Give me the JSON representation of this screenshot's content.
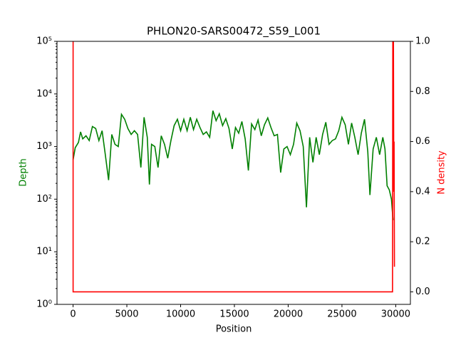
{
  "chart_data": {
    "type": "line",
    "title": "PHLON20-SARS00472_S59_L001",
    "xlabel": "Position",
    "ylabel": "Depth",
    "y2label": "N density",
    "ylabel_color": "#008000",
    "y2label_color": "#ff0000",
    "xlim": [
      -1494,
      31364
    ],
    "xticks": [
      0,
      5000,
      10000,
      15000,
      20000,
      25000,
      30000
    ],
    "ylim": [
      1,
      100000
    ],
    "yscale": "log",
    "yticks": [
      {
        "value": 1,
        "label": "10⁰"
      },
      {
        "value": 10,
        "label": "10¹"
      },
      {
        "value": 100,
        "label": "10²"
      },
      {
        "value": 1000,
        "label": "10³"
      },
      {
        "value": 10000,
        "label": "10⁴"
      },
      {
        "value": 100000,
        "label": "10⁵"
      }
    ],
    "y2lim": [
      -0.05,
      1.0
    ],
    "y2ticks": [
      {
        "value": 0,
        "label": "0.0"
      },
      0.2,
      0.4,
      0.6,
      0.8,
      {
        "value": 1,
        "label": "1.0"
      }
    ],
    "series": [
      {
        "color": "#008000",
        "x": [
          0,
          200,
          500,
          700,
          900,
          1200,
          1500,
          1800,
          2100,
          2400,
          2700,
          3000,
          3300,
          3600,
          3900,
          4200,
          4500,
          4800,
          5100,
          5400,
          5700,
          6000,
          6300,
          6600,
          6900,
          7100,
          7300,
          7600,
          7900,
          8200,
          8500,
          8800,
          9100,
          9400,
          9700,
          10000,
          10300,
          10600,
          10900,
          11200,
          11500,
          11800,
          12100,
          12400,
          12700,
          13000,
          13300,
          13600,
          13900,
          14200,
          14500,
          14800,
          15100,
          15400,
          15700,
          16000,
          16300,
          16600,
          16900,
          17200,
          17500,
          17800,
          18100,
          18400,
          18700,
          19000,
          19300,
          19600,
          19900,
          20200,
          20500,
          20800,
          21100,
          21400,
          21700,
          22000,
          22300,
          22600,
          22900,
          23200,
          23500,
          23800,
          24100,
          24400,
          24700,
          25000,
          25300,
          25600,
          25900,
          26200,
          26500,
          26800,
          27100,
          27400,
          27600,
          27900,
          28200,
          28500,
          28800,
          29000,
          29200,
          29400,
          29600,
          29750
        ],
        "values": [
          560,
          950,
          1200,
          1900,
          1400,
          1600,
          1300,
          2400,
          2200,
          1300,
          2000,
          700,
          230,
          1700,
          1100,
          1000,
          4100,
          3300,
          2200,
          1700,
          2000,
          1700,
          400,
          3600,
          1500,
          190,
          1100,
          1000,
          400,
          1600,
          1100,
          600,
          1300,
          2500,
          3300,
          2000,
          3300,
          2000,
          3600,
          2100,
          3300,
          2300,
          1700,
          1900,
          1500,
          4800,
          3100,
          4200,
          2500,
          3400,
          2200,
          900,
          2300,
          1800,
          3000,
          1400,
          350,
          2700,
          2100,
          3200,
          1600,
          2600,
          3500,
          2300,
          1600,
          1700,
          320,
          900,
          1000,
          700,
          1100,
          2800,
          2000,
          1000,
          70,
          1500,
          500,
          1500,
          700,
          1700,
          2900,
          1100,
          1300,
          1400,
          2000,
          3600,
          2600,
          1100,
          2800,
          1500,
          700,
          1800,
          3300,
          800,
          120,
          900,
          1500,
          700,
          1500,
          900,
          180,
          150,
          100,
          40
        ]
      },
      {
        "color": "#ff0000",
        "axis": "y2",
        "x": [
          0,
          1,
          29700,
          29730,
          29760,
          29790,
          29820,
          29850,
          29880
        ],
        "values": [
          1.0,
          0.0,
          0.0,
          1.0,
          0.75,
          1.0,
          0.4,
          0.6,
          0.1
        ]
      }
    ]
  }
}
